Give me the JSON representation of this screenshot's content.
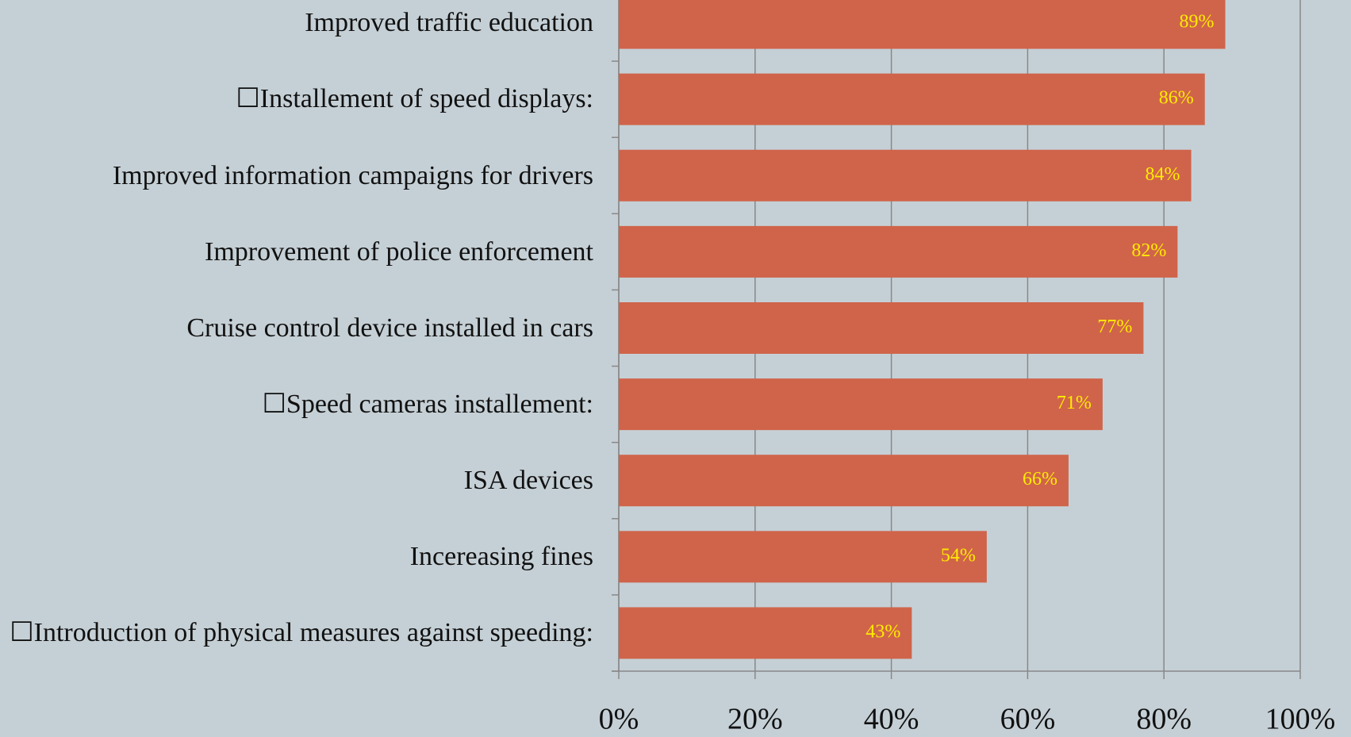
{
  "chart_data": {
    "type": "barh",
    "categories": [
      "Improved traffic education",
      "☐Installement of speed displays:",
      "Improved information campaigns for drivers",
      "Improvement of police enforcement",
      "Cruise control device installed in cars",
      "☐Speed cameras installement:",
      "ISA devices",
      "Incereasing fines",
      "☐Introduction of physical measures against speeding:"
    ],
    "values": [
      89,
      86,
      84,
      82,
      77,
      71,
      66,
      54,
      43
    ],
    "value_labels": [
      "89%",
      "86%",
      "84%",
      "82%",
      "77%",
      "71%",
      "66%",
      "54%",
      "43%"
    ],
    "color": "#d0644a",
    "xlim": [
      0,
      100
    ],
    "xticks": [
      {
        "value": 0,
        "label": "0%"
      },
      {
        "value": 20,
        "label": "20%"
      },
      {
        "value": 40,
        "label": "40%"
      },
      {
        "value": 60,
        "label": "60%"
      },
      {
        "value": 80,
        "label": "80%"
      },
      {
        "value": 100,
        "label": "100%"
      }
    ],
    "grid": true
  }
}
